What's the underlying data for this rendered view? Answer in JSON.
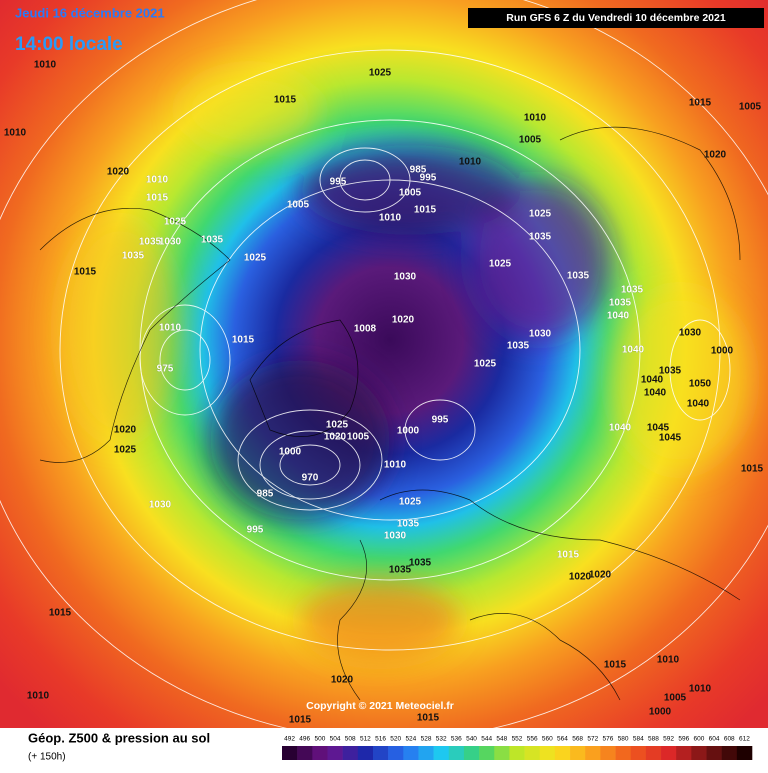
{
  "header": {
    "date": "Jeudi 16 décembre 2021",
    "time": "14:00 locale",
    "run": "Run GFS 6 Z du Vendredi 10 décembre 2021"
  },
  "copyright": "Copyright © 2021 Meteociel.fr",
  "legend": {
    "title": "Géop. Z500 & pression au sol",
    "lead": "(+ 150h)",
    "ticks": [
      492,
      496,
      500,
      504,
      508,
      512,
      516,
      520,
      524,
      528,
      532,
      536,
      540,
      544,
      548,
      552,
      556,
      560,
      564,
      568,
      572,
      576,
      580,
      584,
      588,
      592,
      596,
      600,
      604,
      608,
      612
    ]
  },
  "pressure_labels": [
    1010,
    1010,
    1015,
    1025,
    1015,
    1005,
    1010,
    1005,
    1020,
    1020,
    1010,
    1015,
    995,
    985,
    995,
    1010,
    1005,
    1015,
    1005,
    1010,
    1025,
    1035,
    1025,
    1035,
    1030,
    1035,
    1025,
    1035,
    1030,
    1025,
    1035,
    1015,
    1035,
    1035,
    1040,
    1020,
    1008,
    1030,
    1035,
    1010,
    1015,
    975,
    1025,
    1030,
    1040,
    1000,
    1035,
    1040,
    1050,
    1040,
    1040,
    1000,
    995,
    1025,
    1020,
    1005,
    1000,
    1010,
    970,
    985,
    1020,
    1025,
    1040,
    1045,
    1045,
    1015,
    1030,
    1025,
    995,
    1035,
    1030,
    1035,
    1035,
    1015,
    1020,
    1020,
    1015,
    1015,
    1010,
    1010,
    1020,
    1005,
    1010,
    1000,
    1015,
    1015
  ]
}
